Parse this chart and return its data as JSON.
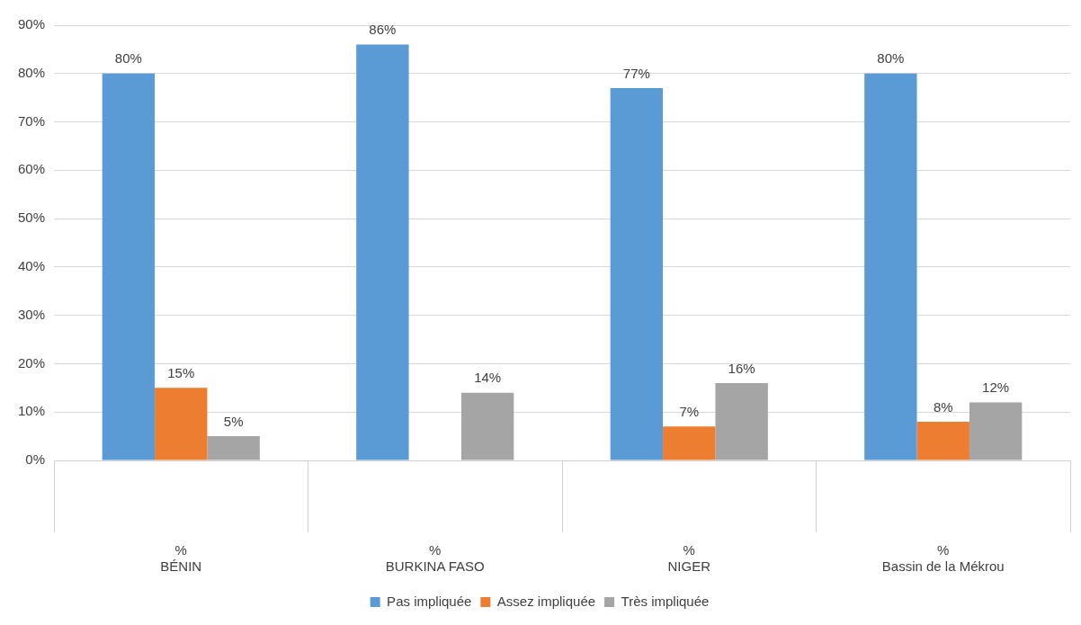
{
  "chart_data": {
    "type": "bar",
    "categories": [
      "%\nBÉNIN",
      "%\nBURKINA FASO",
      "%\nNIGER",
      "%\nBassin de la Mékrou"
    ],
    "series": [
      {
        "name": "Pas impliquée",
        "color": "#5b9bd5",
        "values": [
          80,
          86,
          77,
          80
        ],
        "value_labels": [
          "80%",
          "86%",
          "77%",
          "80%"
        ]
      },
      {
        "name": "Assez impliquée",
        "color": "#ed7d31",
        "values": [
          15,
          null,
          7,
          8
        ],
        "value_labels": [
          "15%",
          null,
          "7%",
          "8%"
        ]
      },
      {
        "name": "Très impliquée",
        "color": "#a5a5a5",
        "values": [
          5,
          14,
          16,
          12
        ],
        "value_labels": [
          "5%",
          "14%",
          "16%",
          "12%"
        ]
      }
    ],
    "ylim": [
      0,
      90
    ],
    "yticks": [
      {
        "value": 0,
        "label": "0%"
      },
      {
        "value": 10,
        "label": "10%"
      },
      {
        "value": 20,
        "label": "20%"
      },
      {
        "value": 30,
        "label": "30%"
      },
      {
        "value": 40,
        "label": "40%"
      },
      {
        "value": 50,
        "label": "50%"
      },
      {
        "value": 60,
        "label": "60%"
      },
      {
        "value": 70,
        "label": "70%"
      },
      {
        "value": 80,
        "label": "80%"
      },
      {
        "value": 90,
        "label": "90%"
      }
    ],
    "grid": "y",
    "legend": "bottom"
  }
}
